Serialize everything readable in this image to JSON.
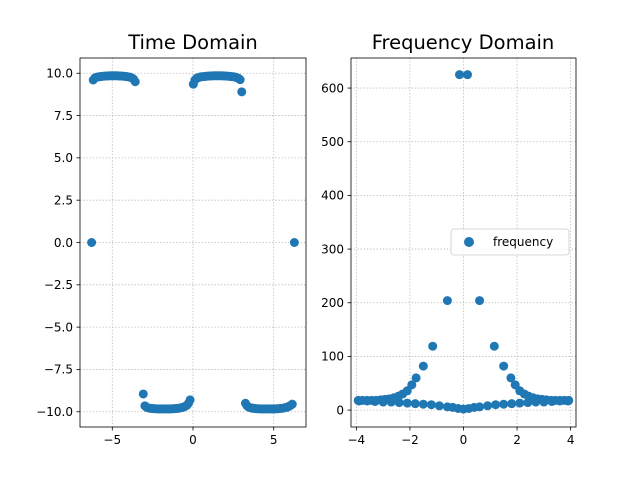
{
  "figure": {
    "background": "#ffffff",
    "point_color": "#1f77b4"
  },
  "chart_data": [
    {
      "type": "scatter",
      "title": "Time Domain",
      "xlabel": "",
      "ylabel": "",
      "xlim": [
        -7.0,
        7.0
      ],
      "ylim": [
        -10.9,
        10.9
      ],
      "xticks": [
        -5,
        0,
        5
      ],
      "xtick_labels": [
        "−5",
        "0",
        "5"
      ],
      "yticks": [
        10.0,
        7.5,
        5.0,
        2.5,
        0.0,
        -2.5,
        -5.0,
        -7.5,
        -10.0
      ],
      "ytick_labels": [
        "10.0",
        "7.5",
        "5.0",
        "2.5",
        "0.0",
        "−2.5",
        "−5.0",
        "−7.5",
        "−10.0"
      ],
      "grid": true,
      "legend": null,
      "series": [
        {
          "points": [
            [
              -6.28,
              0.0
            ],
            [
              -6.18,
              9.6
            ],
            [
              -6.08,
              9.72
            ],
            [
              -5.98,
              9.76
            ],
            [
              -5.88,
              9.78
            ],
            [
              -5.78,
              9.8
            ],
            [
              -5.68,
              9.81
            ],
            [
              -5.58,
              9.82
            ],
            [
              -5.48,
              9.83
            ],
            [
              -5.38,
              9.84
            ],
            [
              -5.28,
              9.84
            ],
            [
              -5.18,
              9.85
            ],
            [
              -5.08,
              9.85
            ],
            [
              -4.98,
              9.85
            ],
            [
              -4.88,
              9.85
            ],
            [
              -4.78,
              9.85
            ],
            [
              -4.68,
              9.85
            ],
            [
              -4.58,
              9.84
            ],
            [
              -4.48,
              9.84
            ],
            [
              -4.38,
              9.83
            ],
            [
              -4.28,
              9.82
            ],
            [
              -4.18,
              9.81
            ],
            [
              -4.08,
              9.8
            ],
            [
              -3.98,
              9.78
            ],
            [
              -3.88,
              9.76
            ],
            [
              -3.78,
              9.72
            ],
            [
              -3.68,
              9.65
            ],
            [
              -3.58,
              9.5
            ],
            [
              -3.08,
              -8.95
            ],
            [
              -2.98,
              -9.65
            ],
            [
              -2.88,
              -9.73
            ],
            [
              -2.78,
              -9.77
            ],
            [
              -2.68,
              -9.79
            ],
            [
              -2.58,
              -9.8
            ],
            [
              -2.48,
              -9.81
            ],
            [
              -2.38,
              -9.82
            ],
            [
              -2.28,
              -9.82
            ],
            [
              -2.18,
              -9.83
            ],
            [
              -2.08,
              -9.83
            ],
            [
              -1.98,
              -9.83
            ],
            [
              -1.88,
              -9.83
            ],
            [
              -1.78,
              -9.83
            ],
            [
              -1.68,
              -9.83
            ],
            [
              -1.58,
              -9.83
            ],
            [
              -1.48,
              -9.83
            ],
            [
              -1.38,
              -9.83
            ],
            [
              -1.28,
              -9.82
            ],
            [
              -1.18,
              -9.82
            ],
            [
              -1.08,
              -9.81
            ],
            [
              -0.98,
              -9.8
            ],
            [
              -0.88,
              -9.79
            ],
            [
              -0.78,
              -9.77
            ],
            [
              -0.68,
              -9.75
            ],
            [
              -0.58,
              -9.72
            ],
            [
              -0.48,
              -9.68
            ],
            [
              -0.38,
              -9.62
            ],
            [
              -0.28,
              -9.5
            ],
            [
              -0.18,
              -9.3
            ],
            [
              0.02,
              9.35
            ],
            [
              0.12,
              9.6
            ],
            [
              0.22,
              9.7
            ],
            [
              0.32,
              9.74
            ],
            [
              0.42,
              9.77
            ],
            [
              0.52,
              9.79
            ],
            [
              0.62,
              9.8
            ],
            [
              0.72,
              9.81
            ],
            [
              0.82,
              9.82
            ],
            [
              0.92,
              9.83
            ],
            [
              1.02,
              9.84
            ],
            [
              1.12,
              9.84
            ],
            [
              1.22,
              9.85
            ],
            [
              1.32,
              9.85
            ],
            [
              1.42,
              9.85
            ],
            [
              1.52,
              9.85
            ],
            [
              1.62,
              9.85
            ],
            [
              1.72,
              9.85
            ],
            [
              1.82,
              9.85
            ],
            [
              1.92,
              9.84
            ],
            [
              2.02,
              9.84
            ],
            [
              2.12,
              9.83
            ],
            [
              2.22,
              9.82
            ],
            [
              2.32,
              9.81
            ],
            [
              2.42,
              9.8
            ],
            [
              2.52,
              9.79
            ],
            [
              2.62,
              9.77
            ],
            [
              2.72,
              9.74
            ],
            [
              2.82,
              9.7
            ],
            [
              2.92,
              9.62
            ],
            [
              3.02,
              8.9
            ],
            [
              3.25,
              -9.5
            ],
            [
              3.35,
              -9.65
            ],
            [
              3.45,
              -9.72
            ],
            [
              3.55,
              -9.76
            ],
            [
              3.65,
              -9.78
            ],
            [
              3.75,
              -9.8
            ],
            [
              3.85,
              -9.81
            ],
            [
              3.95,
              -9.82
            ],
            [
              4.05,
              -9.82
            ],
            [
              4.15,
              -9.83
            ],
            [
              4.25,
              -9.83
            ],
            [
              4.35,
              -9.83
            ],
            [
              4.45,
              -9.83
            ],
            [
              4.55,
              -9.83
            ],
            [
              4.65,
              -9.83
            ],
            [
              4.75,
              -9.83
            ],
            [
              4.85,
              -9.83
            ],
            [
              4.95,
              -9.83
            ],
            [
              5.05,
              -9.83
            ],
            [
              5.15,
              -9.82
            ],
            [
              5.25,
              -9.82
            ],
            [
              5.35,
              -9.81
            ],
            [
              5.45,
              -9.8
            ],
            [
              5.55,
              -9.79
            ],
            [
              5.65,
              -9.77
            ],
            [
              5.75,
              -9.75
            ],
            [
              5.85,
              -9.72
            ],
            [
              5.95,
              -9.68
            ],
            [
              6.05,
              -9.62
            ],
            [
              6.15,
              -9.55
            ],
            [
              6.28,
              0.0
            ]
          ]
        }
      ]
    },
    {
      "type": "scatter",
      "title": "Frequency Domain",
      "xlabel": "",
      "ylabel": "",
      "xlim": [
        -4.2,
        4.2
      ],
      "ylim": [
        -31.5,
        656
      ],
      "xticks": [
        -4,
        -2,
        0,
        2,
        4
      ],
      "xtick_labels": [
        "−4",
        "−2",
        "0",
        "2",
        "4"
      ],
      "yticks": [
        0,
        100,
        200,
        300,
        400,
        500,
        600
      ],
      "ytick_labels": [
        "0",
        "100",
        "200",
        "300",
        "400",
        "500",
        "600"
      ],
      "grid": true,
      "legend": {
        "position": "center-right"
      },
      "series": [
        {
          "name": "frequency",
          "points": [
            [
              -3.93,
              18
            ],
            [
              -3.77,
              18
            ],
            [
              -3.6,
              18
            ],
            [
              -3.43,
              18
            ],
            [
              -3.27,
              18
            ],
            [
              -3.1,
              19
            ],
            [
              -2.93,
              20
            ],
            [
              -2.77,
              21
            ],
            [
              -2.6,
              23
            ],
            [
              -2.43,
              26
            ],
            [
              -2.27,
              30
            ],
            [
              -2.1,
              36
            ],
            [
              -1.93,
              47
            ],
            [
              -1.77,
              60
            ],
            [
              -1.5,
              82
            ],
            [
              -1.15,
              119
            ],
            [
              -0.6,
              204
            ],
            [
              0.15,
              625
            ],
            [
              -0.15,
              625
            ],
            [
              0.6,
              204
            ],
            [
              1.15,
              119
            ],
            [
              1.5,
              82
            ],
            [
              1.77,
              60
            ],
            [
              1.93,
              47
            ],
            [
              2.1,
              36
            ],
            [
              2.27,
              30
            ],
            [
              2.43,
              26
            ],
            [
              2.6,
              23
            ],
            [
              2.77,
              21
            ],
            [
              2.93,
              20
            ],
            [
              3.1,
              19
            ],
            [
              3.27,
              18
            ],
            [
              3.43,
              18
            ],
            [
              3.6,
              18
            ],
            [
              3.77,
              18
            ],
            [
              3.93,
              18
            ],
            [
              -3.9,
              17
            ],
            [
              -3.6,
              17
            ],
            [
              -3.3,
              16
            ],
            [
              -3.0,
              15
            ],
            [
              -2.7,
              15
            ],
            [
              -2.4,
              14
            ],
            [
              -2.1,
              13
            ],
            [
              -1.8,
              12
            ],
            [
              -1.5,
              11
            ],
            [
              -1.2,
              10
            ],
            [
              -0.9,
              8
            ],
            [
              -0.6,
              6
            ],
            [
              -0.4,
              5
            ],
            [
              -0.2,
              3
            ],
            [
              0.0,
              2
            ],
            [
              0.2,
              3
            ],
            [
              0.4,
              5
            ],
            [
              0.6,
              6
            ],
            [
              0.9,
              8
            ],
            [
              1.2,
              10
            ],
            [
              1.5,
              11
            ],
            [
              1.8,
              12
            ],
            [
              2.1,
              13
            ],
            [
              2.4,
              14
            ],
            [
              2.7,
              15
            ],
            [
              3.0,
              15
            ],
            [
              3.3,
              16
            ],
            [
              3.6,
              17
            ],
            [
              3.9,
              17
            ]
          ]
        }
      ]
    }
  ]
}
